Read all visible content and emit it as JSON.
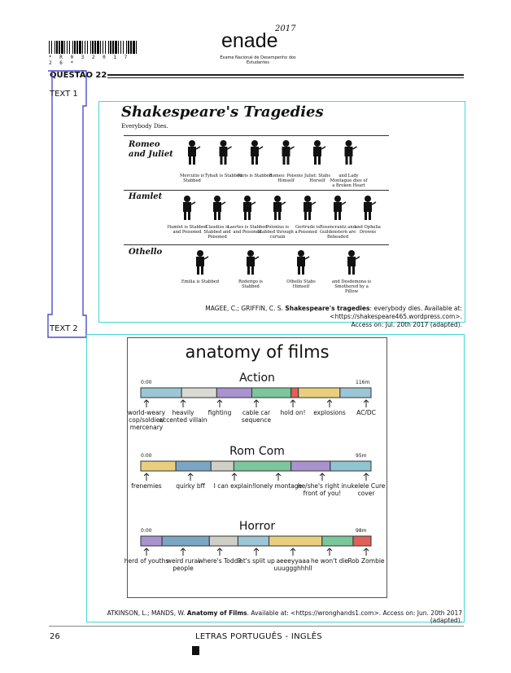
{
  "header": {
    "barcode_digits": "* R 0 3 2 0 1 7 2 6 *",
    "logo_year": "2017",
    "logo_word": "enade",
    "logo_tagline": "Exame Nacional de Desempenho dos Estudantes"
  },
  "question": {
    "label": "QUESTÃO 22"
  },
  "text1": {
    "label": "TEXT 1",
    "title": "Shakespeare's Tragedies",
    "subtitle": "Everybody Dies.",
    "plays": [
      {
        "name": "Romeo and Juliet",
        "deaths": [
          "Mercutio is Stabbed",
          "Tybalt is Stabbed",
          "Paris is Stabbed",
          "Romeo: Poisons Himself",
          "Juliet: Stabs Herself",
          "and Lady Montague dies of a Broken Heart"
        ]
      },
      {
        "name": "Hamlet",
        "deaths": [
          "Hamlet is Stabbed and Poisoned",
          "Claudius is Stabbed and Poisoned",
          "Laertes is Stabbed and Poisoned",
          "Polonius is Stabbed through a curtain",
          "Gertrude is Poisoned",
          "Rosencrantz and Guildenstern are Beheaded",
          "and Ophelia Drowns"
        ]
      },
      {
        "name": "Othello",
        "deaths": [
          "Emilia is Stabbed",
          "Roderigo is Stabbed",
          "Othello Stabs Himself",
          "and Desdemona is Smothered by a Pillow"
        ]
      }
    ],
    "credit_prefix": "MAGEE, C.; GRIFFIN, C. S. ",
    "credit_title": "Shakespeare's tragedies",
    "credit_rest": ": everybody dies. Available at: <https://shakespeare465.wordpress.com>.",
    "credit_access": "Access on: Jul. 20th 2017 (adapted)."
  },
  "text2": {
    "label": "TEXT 2",
    "title": "anatomy of films",
    "genres": [
      {
        "name": "Action",
        "start": "0:00",
        "end": "116m",
        "segments": [
          {
            "color": "#9cc6d6",
            "w": 50
          },
          {
            "color": "#dadad4",
            "w": 43
          },
          {
            "color": "#a893cf",
            "w": 43
          },
          {
            "color": "#7bc69a",
            "w": 48
          },
          {
            "color": "#e0605a",
            "w": 9
          },
          {
            "color": "#e9cf7d",
            "w": 51
          },
          {
            "color": "#9cc6d6",
            "w": 38
          }
        ],
        "labels": [
          "world-weary cop/soldier/ mercenary",
          "heavily accented villain",
          "fighting",
          "cable car sequence",
          "hold on!",
          "explosions",
          "AC/DC"
        ]
      },
      {
        "name": "Rom Com",
        "start": "0:00",
        "end": "95m",
        "segments": [
          {
            "color": "#e9cf7d",
            "w": 43
          },
          {
            "color": "#7aa6c3",
            "w": 43
          },
          {
            "color": "#cfcfc8",
            "w": 28
          },
          {
            "color": "#7bc69a",
            "w": 70
          },
          {
            "color": "#a893cf",
            "w": 48
          },
          {
            "color": "#8fc4d0",
            "w": 50
          }
        ],
        "labels": [
          "frenemies",
          "quirky bff",
          "I can explain!",
          "lonely montage",
          "he/she's right in front of you!",
          "ukelele Cure cover"
        ]
      },
      {
        "name": "Horror",
        "start": "0:00",
        "end": "98m",
        "segments": [
          {
            "color": "#a893cf",
            "w": 26
          },
          {
            "color": "#7aa6c3",
            "w": 58
          },
          {
            "color": "#cfcfc8",
            "w": 35
          },
          {
            "color": "#9cc6d6",
            "w": 38
          },
          {
            "color": "#e9cf7d",
            "w": 65
          },
          {
            "color": "#7bc69a",
            "w": 38
          },
          {
            "color": "#e0605a",
            "w": 22
          }
        ],
        "labels": [
          "herd of youths",
          "weird rural people",
          "where's Todd?",
          "let's split up",
          "aeeeyyaaa uuuggghhhll",
          "he won't die",
          "Rob Zombie"
        ]
      }
    ],
    "credit_prefix": "ATKINSON, L.; MANDS, W. ",
    "credit_title": "Anatomy of Films",
    "credit_rest": ". Available at: <https://wronghands1.com>. Access on: Jun. 20th 2017 (adapted)."
  },
  "footer": {
    "page": "26",
    "course": "LETRAS PORTUGUÊS - INGLÊS"
  }
}
